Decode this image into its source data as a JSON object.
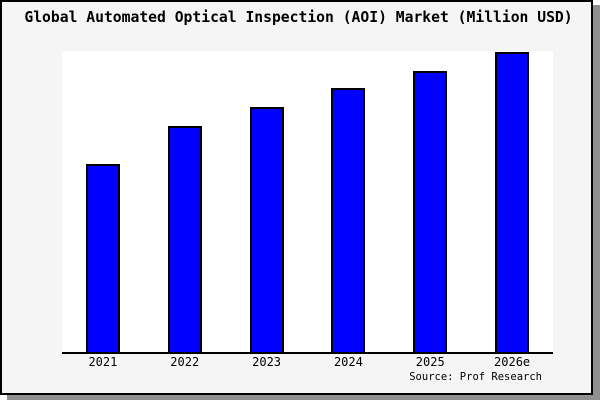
{
  "window": {
    "background_color": "#f5f5f5",
    "frame_border_color": "#000000",
    "shadow_color": "#8f8f8f",
    "plot_background_color": "#ffffff"
  },
  "title": "Global Automated Optical Inspection (AOI) Market (Million USD)",
  "source_label": "Source: Prof Research",
  "chart_data": {
    "type": "bar",
    "title": "Global Automated Optical Inspection (AOI) Market (Million USD)",
    "categories": [
      "2021",
      "2022",
      "2023",
      "2024",
      "2025",
      "2026e"
    ],
    "values": [
      62.8,
      75.4,
      81.6,
      88.0,
      93.6,
      100
    ],
    "values_unit": "percent of tallest bar (no y-axis scale shown in image)",
    "xlabel": "",
    "ylabel": "",
    "ylim": [
      0,
      100.3
    ],
    "grid": false,
    "legend": false,
    "bar_color": "#0000ff",
    "bar_border_color": "#000000",
    "axis_line_color": "#000000"
  }
}
